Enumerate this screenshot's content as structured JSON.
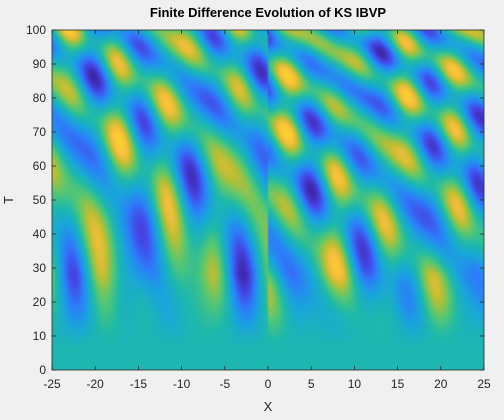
{
  "chart_data": {
    "type": "heatmap",
    "title": "Finite Difference Evolution of KS IBVP",
    "xlabel": "X",
    "ylabel": "T",
    "xlim": [
      -25,
      25
    ],
    "ylim": [
      0,
      100
    ],
    "x_ticks": [
      -25,
      -20,
      -15,
      -10,
      -5,
      0,
      5,
      10,
      15,
      20,
      25
    ],
    "y_ticks": [
      0,
      10,
      20,
      30,
      40,
      50,
      60,
      70,
      80,
      90,
      100
    ],
    "grid": false,
    "colormap": "parula",
    "colors": {
      "low": "#3d26a8",
      "mid": "#1bb0c4",
      "high": "#f9d62c",
      "background": "#f0f0f0",
      "plot_background": "#ffffff"
    },
    "description": "Space-time evolution u(x,t) of the Kuramoto-Sivashinsky equation; initially uniform near t=0, developing diagonal cellular stripes that split and merge as t increases."
  }
}
